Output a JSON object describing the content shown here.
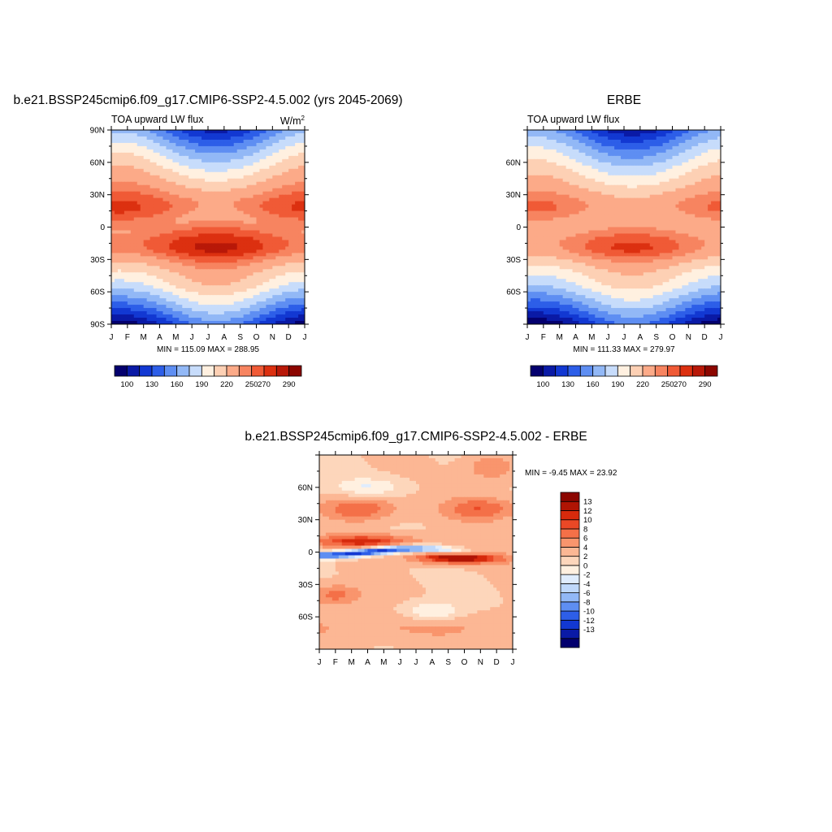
{
  "colors": {
    "diverging_palette": [
      "#04006e",
      "#0a1aa6",
      "#1238d2",
      "#2d5ee8",
      "#5e8ef2",
      "#92b8f6",
      "#c7dcfb",
      "#fff0e0",
      "#fdd0b4",
      "#fcaa88",
      "#f78460",
      "#f05a36",
      "#dc3010",
      "#b81808",
      "#8c0600"
    ],
    "diff_palette": [
      "#03006e",
      "#0a1aa6",
      "#1238d2",
      "#2d5ee8",
      "#5e8ef2",
      "#92b8f6",
      "#bfd8fb",
      "#dfecfd",
      "#fff0e0",
      "#fdd6bb",
      "#fcb794",
      "#f9956d",
      "#f47048",
      "#ea4826",
      "#d62a0c",
      "#b01404",
      "#8c0600"
    ]
  },
  "panels": {
    "model": {
      "title": "b.e21.BSSP245cmip6.f09_g17.CMIP6-SSP2-4.5.002 (yrs 2045-2069)",
      "left_label": "TOA upward LW flux",
      "units_base": "W/m",
      "units_exp": "2",
      "min_max": "MIN = 115.09 MAX = 288.95"
    },
    "obs": {
      "title": "ERBE",
      "left_label": "TOA upward LW flux",
      "min_max": "MIN = 111.33 MAX = 279.97"
    },
    "diff": {
      "title": "b.e21.BSSP245cmip6.f09_g17.CMIP6-SSP2-4.5.002 - ERBE",
      "min_max": "MIN =  -9.45 MAX =  23.92"
    }
  },
  "chart_data": [
    {
      "type": "heatmap",
      "title": "b.e21.BSSP245cmip6.f09_g17.CMIP6-SSP2-4.5.002 (yrs 2045-2069)",
      "xlabel": "",
      "ylabel": "",
      "x_ticks": [
        "J",
        "F",
        "M",
        "A",
        "M",
        "J",
        "J",
        "A",
        "S",
        "O",
        "N",
        "D",
        "J"
      ],
      "y_ticks": [
        "90N",
        "60N",
        "30N",
        "0",
        "30S",
        "60S",
        "90S"
      ],
      "ylim": [
        -90,
        90
      ],
      "colorbar_labels": [
        "100",
        "130",
        "160",
        "190",
        "220",
        "250",
        "270",
        "290"
      ],
      "min": 115.09,
      "max": 288.95
    },
    {
      "type": "heatmap",
      "title": "ERBE",
      "xlabel": "",
      "ylabel": "",
      "x_ticks": [
        "J",
        "F",
        "M",
        "A",
        "M",
        "J",
        "J",
        "A",
        "S",
        "O",
        "N",
        "D",
        "J"
      ],
      "y_ticks": [
        "60N",
        "30N",
        "0",
        "30S",
        "60S"
      ],
      "ylim": [
        -90,
        90
      ],
      "colorbar_labels": [
        "100",
        "130",
        "160",
        "190",
        "220",
        "250",
        "270",
        "290"
      ],
      "min": 111.33,
      "max": 279.97
    },
    {
      "type": "heatmap",
      "title": "b.e21.BSSP245cmip6.f09_g17.CMIP6-SSP2-4.5.002 - ERBE",
      "xlabel": "",
      "ylabel": "",
      "x_ticks": [
        "J",
        "F",
        "M",
        "A",
        "M",
        "J",
        "J",
        "A",
        "S",
        "O",
        "N",
        "D",
        "J"
      ],
      "y_ticks": [
        "60N",
        "30N",
        "0",
        "30S",
        "60S"
      ],
      "ylim": [
        -90,
        90
      ],
      "colorbar_labels": [
        "13",
        "12",
        "10",
        "8",
        "6",
        "4",
        "2",
        "0",
        "-2",
        "-4",
        "-6",
        "-8",
        "-10",
        "-12",
        "-13"
      ],
      "min": -9.45,
      "max": 23.92
    }
  ]
}
